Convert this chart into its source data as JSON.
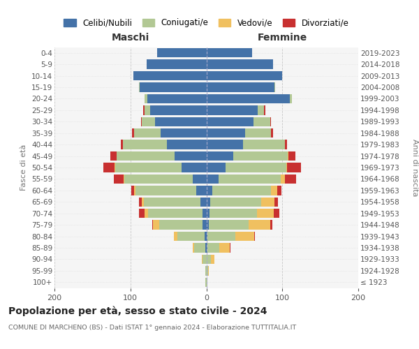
{
  "age_groups": [
    "100+",
    "95-99",
    "90-94",
    "85-89",
    "80-84",
    "75-79",
    "70-74",
    "65-69",
    "60-64",
    "55-59",
    "50-54",
    "45-49",
    "40-44",
    "35-39",
    "30-34",
    "25-29",
    "20-24",
    "15-19",
    "10-14",
    "5-9",
    "0-4"
  ],
  "birth_years": [
    "≤ 1923",
    "1924-1928",
    "1929-1933",
    "1934-1938",
    "1939-1943",
    "1944-1948",
    "1949-1953",
    "1954-1958",
    "1959-1963",
    "1964-1968",
    "1969-1973",
    "1974-1978",
    "1979-1983",
    "1984-1988",
    "1989-1993",
    "1994-1998",
    "1999-2003",
    "2004-2008",
    "2009-2013",
    "2014-2018",
    "2019-2023"
  ],
  "males": {
    "celibi": [
      0,
      0,
      0,
      1,
      2,
      5,
      5,
      8,
      13,
      18,
      33,
      42,
      52,
      60,
      68,
      74,
      78,
      88,
      96,
      79,
      65
    ],
    "coniugati": [
      1,
      1,
      5,
      15,
      36,
      57,
      72,
      74,
      80,
      90,
      87,
      76,
      58,
      35,
      17,
      7,
      3,
      1,
      0,
      0,
      0
    ],
    "vedovi": [
      0,
      0,
      1,
      2,
      5,
      8,
      4,
      3,
      2,
      1,
      1,
      0,
      0,
      0,
      0,
      0,
      0,
      0,
      0,
      0,
      0
    ],
    "divorziati": [
      0,
      0,
      0,
      0,
      0,
      1,
      8,
      4,
      4,
      13,
      15,
      8,
      3,
      3,
      1,
      2,
      0,
      0,
      0,
      0,
      0
    ]
  },
  "females": {
    "nubili": [
      0,
      0,
      0,
      1,
      1,
      3,
      4,
      5,
      8,
      16,
      25,
      35,
      48,
      51,
      62,
      68,
      110,
      90,
      100,
      88,
      60
    ],
    "coniugate": [
      1,
      2,
      6,
      16,
      37,
      53,
      63,
      67,
      77,
      82,
      80,
      72,
      55,
      34,
      22,
      8,
      3,
      1,
      0,
      0,
      0
    ],
    "vedove": [
      0,
      1,
      5,
      14,
      25,
      28,
      22,
      18,
      8,
      5,
      1,
      1,
      0,
      0,
      0,
      0,
      0,
      0,
      0,
      0,
      0
    ],
    "divorziate": [
      0,
      0,
      0,
      1,
      1,
      3,
      7,
      4,
      6,
      15,
      19,
      9,
      3,
      3,
      1,
      2,
      0,
      0,
      0,
      0,
      0
    ]
  },
  "colors": {
    "celibi": "#4472a8",
    "coniugati": "#b2c894",
    "vedovi": "#f0c060",
    "divorziati": "#c83030"
  },
  "legend_labels": [
    "Celibi/Nubili",
    "Coniugati/e",
    "Vedovi/e",
    "Divorziati/e"
  ],
  "title": "Popolazione per età, sesso e stato civile - 2024",
  "subtitle": "COMUNE DI MARCHENO (BS) - Dati ISTAT 1° gennaio 2024 - Elaborazione TUTTITALIA.IT",
  "ylabel_left": "Fasce di età",
  "ylabel_right": "Anni di nascita",
  "xlabel_left": "Maschi",
  "xlabel_right": "Femmine",
  "xlim": 200,
  "bg_color": "#f5f5f5",
  "grid_color": "#cccccc"
}
